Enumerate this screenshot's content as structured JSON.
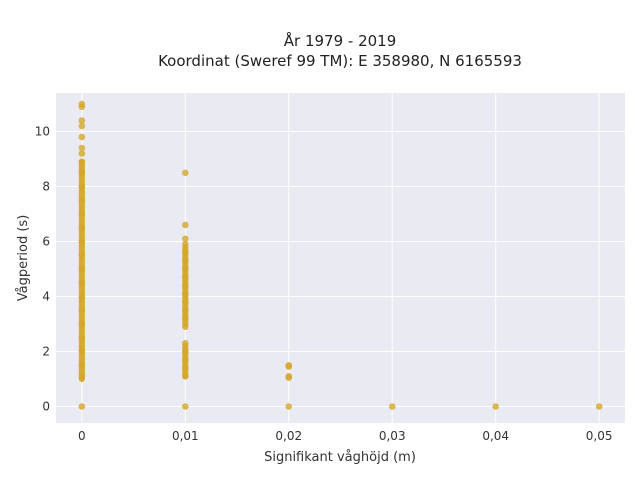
{
  "chart_data": {
    "type": "scatter",
    "title": [
      "År 1979 - 2019",
      "Koordinat (Sweref 99 TM): E 358980, N 6165593"
    ],
    "xlabel": "Signifikant våghöjd (m)",
    "ylabel": "Vågperiod (s)",
    "xlim": [
      -0.0025,
      0.0525
    ],
    "ylim": [
      -0.6,
      11.4
    ],
    "xticks": [
      0,
      0.01,
      0.02,
      0.03,
      0.04,
      0.05
    ],
    "xtick_labels": [
      "0",
      "0,01",
      "0,02",
      "0,03",
      "0,04",
      "0,05"
    ],
    "yticks": [
      0,
      2,
      4,
      6,
      8,
      10
    ],
    "ytick_labels": [
      "0",
      "2",
      "4",
      "6",
      "8",
      "10"
    ],
    "grid": true,
    "marker_color": "#D4A62A",
    "plot_background": "#EAEAF2",
    "series": [
      {
        "points": [
          {
            "x": 0,
            "y": 0
          },
          {
            "x": 0,
            "y": 1.1
          },
          {
            "x": 0,
            "y": 1.5
          },
          {
            "x": 0,
            "y": 2.0
          },
          {
            "x": 0,
            "y": 2.5
          },
          {
            "x": 0,
            "y": 3.0
          },
          {
            "x": 0,
            "y": 3.5
          },
          {
            "x": 0,
            "y": 4.0
          },
          {
            "x": 0,
            "y": 4.5
          },
          {
            "x": 0,
            "y": 5.0
          },
          {
            "x": 0,
            "y": 5.5
          },
          {
            "x": 0,
            "y": 6.0
          },
          {
            "x": 0,
            "y": 6.5
          },
          {
            "x": 0,
            "y": 7.0
          },
          {
            "x": 0,
            "y": 7.5
          },
          {
            "x": 0,
            "y": 8.0
          },
          {
            "x": 0,
            "y": 8.5
          },
          {
            "x": 0,
            "y": 8.9
          },
          {
            "x": 0,
            "y": 9.2
          },
          {
            "x": 0,
            "y": 9.4
          },
          {
            "x": 0,
            "y": 9.8
          },
          {
            "x": 0,
            "y": 10.2
          },
          {
            "x": 0,
            "y": 10.4
          },
          {
            "x": 0,
            "y": 10.9
          },
          {
            "x": 0,
            "y": 11.0
          },
          {
            "x": 0.01,
            "y": 0
          },
          {
            "x": 0.01,
            "y": 1.1
          },
          {
            "x": 0.01,
            "y": 1.4
          },
          {
            "x": 0.01,
            "y": 1.7
          },
          {
            "x": 0.01,
            "y": 2.0
          },
          {
            "x": 0.01,
            "y": 2.3
          },
          {
            "x": 0.01,
            "y": 2.9
          },
          {
            "x": 0.01,
            "y": 3.2
          },
          {
            "x": 0.01,
            "y": 3.5
          },
          {
            "x": 0.01,
            "y": 3.8
          },
          {
            "x": 0.01,
            "y": 4.1
          },
          {
            "x": 0.01,
            "y": 4.4
          },
          {
            "x": 0.01,
            "y": 4.7
          },
          {
            "x": 0.01,
            "y": 5.0
          },
          {
            "x": 0.01,
            "y": 5.3
          },
          {
            "x": 0.01,
            "y": 5.6
          },
          {
            "x": 0.01,
            "y": 5.9
          },
          {
            "x": 0.01,
            "y": 6.1
          },
          {
            "x": 0.01,
            "y": 6.6
          },
          {
            "x": 0.01,
            "y": 8.5
          },
          {
            "x": 0.02,
            "y": 0
          },
          {
            "x": 0.02,
            "y": 1.05
          },
          {
            "x": 0.02,
            "y": 1.1
          },
          {
            "x": 0.02,
            "y": 1.45
          },
          {
            "x": 0.02,
            "y": 1.5
          },
          {
            "x": 0.03,
            "y": 0
          },
          {
            "x": 0.04,
            "y": 0
          },
          {
            "x": 0.05,
            "y": 0
          }
        ],
        "dense_ranges": [
          {
            "x": 0,
            "y_from": 1.0,
            "y_to": 8.9
          },
          {
            "x": 0.01,
            "y_from": 3.0,
            "y_to": 5.8
          },
          {
            "x": 0.01,
            "y_from": 1.1,
            "y_to": 2.2
          }
        ]
      }
    ]
  }
}
